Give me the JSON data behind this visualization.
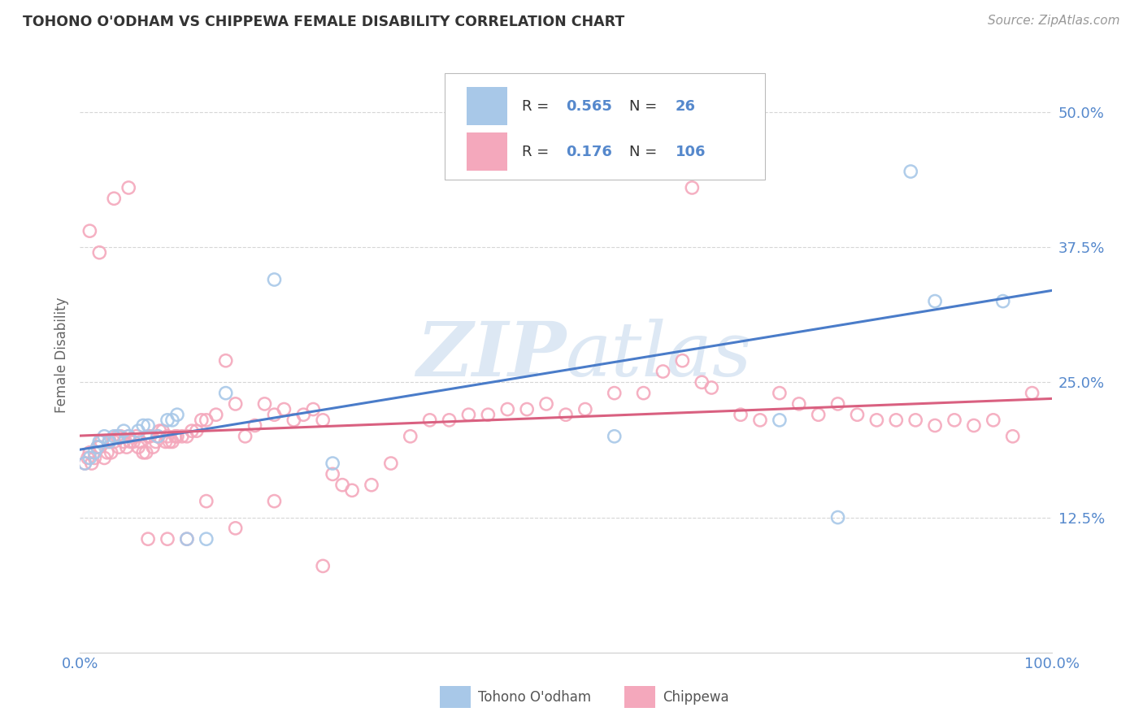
{
  "title": "TOHONO O'ODHAM VS CHIPPEWA FEMALE DISABILITY CORRELATION CHART",
  "source": "Source: ZipAtlas.com",
  "ylabel": "Female Disability",
  "yticks_labels": [
    "12.5%",
    "25.0%",
    "37.5%",
    "50.0%"
  ],
  "ytick_vals": [
    0.125,
    0.25,
    0.375,
    0.5
  ],
  "xlim": [
    0.0,
    1.0
  ],
  "ylim": [
    0.0,
    0.55
  ],
  "color_blue": "#a8c8e8",
  "color_pink": "#f4a8bc",
  "line_color_blue": "#4a7cc9",
  "line_color_pink": "#d96080",
  "watermark_color": "#dde8f4",
  "background_color": "#ffffff",
  "grid_color": "#cccccc",
  "tick_color": "#5588cc",
  "title_color": "#333333",
  "source_color": "#999999",
  "ylabel_color": "#666666",
  "tohono_x": [
    0.005,
    0.01,
    0.015,
    0.018,
    0.02,
    0.025,
    0.03,
    0.035,
    0.04,
    0.045,
    0.05,
    0.06,
    0.065,
    0.07,
    0.08,
    0.09,
    0.095,
    0.1,
    0.11,
    0.13,
    0.15,
    0.2,
    0.26,
    0.55,
    0.62,
    0.72,
    0.78,
    0.855,
    0.88,
    0.95
  ],
  "tohono_y": [
    0.175,
    0.18,
    0.185,
    0.19,
    0.195,
    0.2,
    0.195,
    0.2,
    0.2,
    0.205,
    0.2,
    0.205,
    0.21,
    0.21,
    0.2,
    0.215,
    0.215,
    0.22,
    0.105,
    0.105,
    0.24,
    0.345,
    0.175,
    0.2,
    0.465,
    0.215,
    0.125,
    0.445,
    0.325,
    0.325
  ],
  "chippewa_x": [
    0.005,
    0.008,
    0.01,
    0.012,
    0.015,
    0.018,
    0.02,
    0.022,
    0.025,
    0.028,
    0.03,
    0.032,
    0.035,
    0.038,
    0.04,
    0.042,
    0.045,
    0.048,
    0.05,
    0.052,
    0.055,
    0.058,
    0.06,
    0.062,
    0.065,
    0.068,
    0.07,
    0.072,
    0.075,
    0.078,
    0.08,
    0.082,
    0.085,
    0.088,
    0.09,
    0.092,
    0.095,
    0.098,
    0.1,
    0.105,
    0.11,
    0.115,
    0.12,
    0.125,
    0.13,
    0.14,
    0.15,
    0.16,
    0.17,
    0.18,
    0.19,
    0.2,
    0.21,
    0.22,
    0.23,
    0.24,
    0.25,
    0.26,
    0.27,
    0.28,
    0.3,
    0.32,
    0.34,
    0.36,
    0.38,
    0.4,
    0.42,
    0.44,
    0.46,
    0.48,
    0.5,
    0.52,
    0.55,
    0.58,
    0.6,
    0.62,
    0.64,
    0.65,
    0.68,
    0.7,
    0.72,
    0.74,
    0.76,
    0.78,
    0.8,
    0.82,
    0.84,
    0.86,
    0.88,
    0.9,
    0.92,
    0.94,
    0.96,
    0.98,
    0.01,
    0.02,
    0.035,
    0.05,
    0.07,
    0.09,
    0.11,
    0.13,
    0.16,
    0.2,
    0.25,
    0.63
  ],
  "chippewa_y": [
    0.175,
    0.18,
    0.185,
    0.175,
    0.18,
    0.19,
    0.19,
    0.195,
    0.18,
    0.185,
    0.195,
    0.185,
    0.195,
    0.2,
    0.19,
    0.2,
    0.195,
    0.19,
    0.2,
    0.195,
    0.195,
    0.2,
    0.19,
    0.195,
    0.185,
    0.185,
    0.2,
    0.2,
    0.19,
    0.195,
    0.2,
    0.205,
    0.205,
    0.195,
    0.2,
    0.195,
    0.195,
    0.2,
    0.2,
    0.2,
    0.2,
    0.205,
    0.205,
    0.215,
    0.215,
    0.22,
    0.27,
    0.23,
    0.2,
    0.21,
    0.23,
    0.22,
    0.225,
    0.215,
    0.22,
    0.225,
    0.215,
    0.165,
    0.155,
    0.15,
    0.155,
    0.175,
    0.2,
    0.215,
    0.215,
    0.22,
    0.22,
    0.225,
    0.225,
    0.23,
    0.22,
    0.225,
    0.24,
    0.24,
    0.26,
    0.27,
    0.25,
    0.245,
    0.22,
    0.215,
    0.24,
    0.23,
    0.22,
    0.23,
    0.22,
    0.215,
    0.215,
    0.215,
    0.21,
    0.215,
    0.21,
    0.215,
    0.2,
    0.24,
    0.39,
    0.37,
    0.42,
    0.43,
    0.105,
    0.105,
    0.105,
    0.14,
    0.115,
    0.14,
    0.08,
    0.43
  ]
}
